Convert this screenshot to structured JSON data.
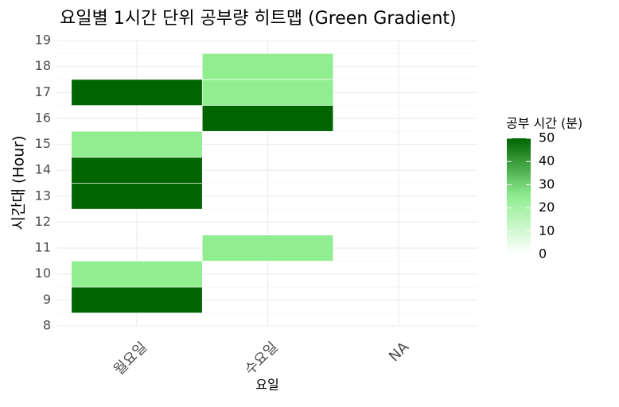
{
  "chart_data": {
    "type": "heatmap",
    "title": "요일별 1시간 단위 공부량 히트맵 (Green Gradient)",
    "x_label": "요일",
    "y_label": "시간대 (Hour)",
    "series": [
      {
        "name": "월요일",
        "hours": [
          9,
          10,
          13,
          14,
          15,
          17
        ],
        "values": [
          50,
          25,
          50,
          50,
          25,
          50
        ]
      },
      {
        "name": "수요일",
        "hours": [
          11,
          16,
          17,
          18
        ],
        "values": [
          25,
          50,
          25,
          25
        ]
      },
      {
        "name": "NA",
        "hours": [],
        "values": []
      }
    ],
    "ylim": [
      8,
      19
    ],
    "yticks": [
      8,
      9,
      10,
      11,
      12,
      13,
      14,
      15,
      16,
      17,
      18,
      19
    ],
    "grid": true,
    "legend": {
      "title": "공부 시간 (분)",
      "position": "right",
      "colors": [
        "#ffffff",
        "#90ee90",
        "#006400"
      ],
      "clim": [
        0,
        50
      ],
      "ticks": [
        0,
        10,
        20,
        30,
        40,
        50
      ]
    }
  }
}
